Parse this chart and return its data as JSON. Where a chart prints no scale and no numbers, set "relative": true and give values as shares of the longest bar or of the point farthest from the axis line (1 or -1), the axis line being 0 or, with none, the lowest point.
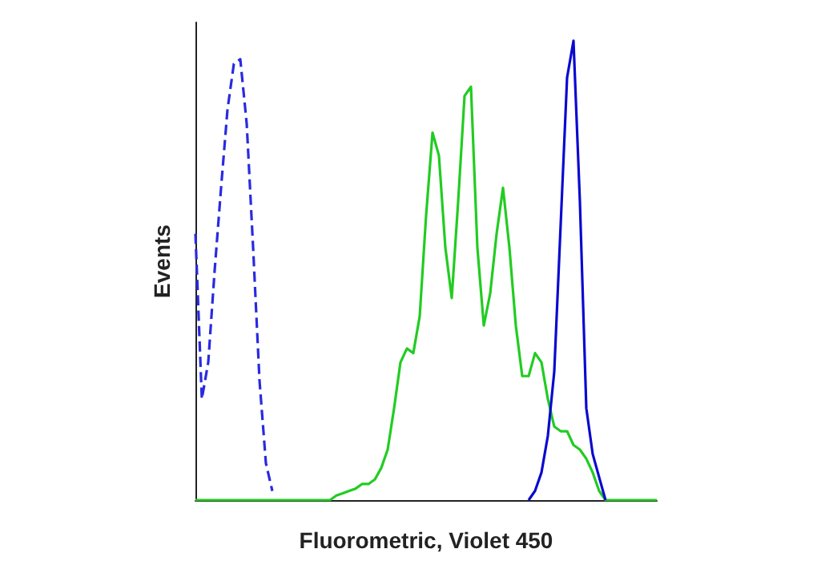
{
  "chart_data": {
    "type": "line",
    "relative": true,
    "xlabel": "Fluorometric, Violet 450",
    "ylabel": "Events",
    "grid": false,
    "marker": "none",
    "categories": [
      null,
      null,
      null,
      null,
      null,
      null,
      null,
      null,
      null,
      null,
      null,
      null,
      null,
      null,
      null,
      null,
      null,
      null,
      null,
      null,
      null,
      null,
      null,
      null,
      null,
      null,
      null,
      null,
      null,
      null,
      null,
      null,
      null,
      null,
      null,
      null,
      null,
      null,
      null,
      null,
      null,
      null,
      null,
      null,
      null,
      null,
      null,
      null,
      null,
      null,
      null,
      null,
      null,
      null,
      null,
      null,
      null,
      null,
      null,
      null,
      null,
      null,
      null,
      null,
      null,
      null,
      null,
      null,
      null,
      null,
      null,
      null,
      null
    ],
    "series": [
      {
        "color": "#2a2ae0",
        "line_style": "dashed",
        "values": [
          0.58,
          0.22,
          0.3,
          0.5,
          0.68,
          0.85,
          0.95,
          0.96,
          0.82,
          0.55,
          0.26,
          0.08,
          0.02,
          null,
          null,
          null,
          null,
          null,
          null,
          null,
          null,
          null,
          null,
          null,
          null,
          null,
          null,
          null,
          null,
          null,
          null,
          null,
          null,
          null,
          null,
          null,
          null,
          null,
          null,
          null,
          null,
          null,
          null,
          null,
          null,
          null,
          null,
          null,
          null,
          null,
          null,
          null,
          null,
          null,
          null,
          null,
          null,
          null,
          null,
          null,
          null,
          null,
          null,
          null,
          null,
          null,
          null,
          null,
          null,
          null,
          null,
          null,
          null
        ]
      },
      {
        "color": "#22cc22",
        "line_style": "solid",
        "values": [
          0,
          0,
          0,
          0,
          0,
          0,
          0,
          0,
          0,
          0,
          0,
          0,
          0,
          0,
          0,
          0,
          0,
          0,
          0,
          0,
          0,
          0,
          0.01,
          0.015,
          0.02,
          0.025,
          0.035,
          0.035,
          0.045,
          0.07,
          0.11,
          0.2,
          0.3,
          0.33,
          0.32,
          0.4,
          0.62,
          0.8,
          0.75,
          0.55,
          0.44,
          0.65,
          0.88,
          0.9,
          0.55,
          0.38,
          0.45,
          0.58,
          0.68,
          0.55,
          0.38,
          0.27,
          0.27,
          0.32,
          0.3,
          0.22,
          0.16,
          0.15,
          0.15,
          0.12,
          0.11,
          0.09,
          0.06,
          0.02,
          0,
          0,
          0,
          0,
          0,
          0,
          0,
          0,
          0
        ]
      },
      {
        "color": "#0a0ad0",
        "line_style": "solid",
        "values": [
          null,
          null,
          null,
          null,
          null,
          null,
          null,
          null,
          null,
          null,
          null,
          null,
          null,
          null,
          null,
          null,
          null,
          null,
          null,
          null,
          null,
          null,
          null,
          null,
          null,
          null,
          null,
          null,
          null,
          null,
          null,
          null,
          null,
          null,
          null,
          null,
          null,
          null,
          null,
          null,
          null,
          null,
          null,
          null,
          null,
          null,
          null,
          null,
          null,
          null,
          null,
          null,
          0,
          0.02,
          0.06,
          0.14,
          0.28,
          0.6,
          0.92,
          1.0,
          0.65,
          0.2,
          0.1,
          0.05,
          0,
          null,
          null,
          null,
          null,
          null,
          null,
          null,
          null
        ]
      }
    ]
  }
}
